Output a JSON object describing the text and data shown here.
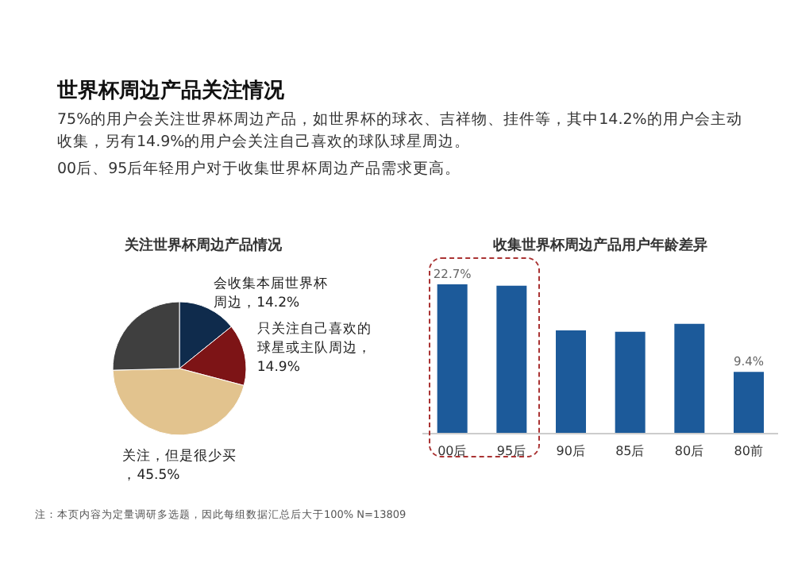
{
  "chart_data": [
    {
      "type": "other",
      "title": "世界杯周边产品关注情况",
      "subtitle": "75%的用户会关注世界杯周边产品，如世界杯的球衣、吉祥物、挂件等，其中14.2%的用户会主动收集，另有14.9%的用户会关注自己喜欢的球队球星周边。\n00后、95后年轻用户对于收集世界杯周边产品需求更高。"
    },
    {
      "type": "pie",
      "title": "关注世界杯周边产品情况",
      "categories": [
        "会收集本届世界杯周边，14.2%",
        "只关注自己喜欢的球星或主队周边，14.9%",
        "关注，但是很少买，45.5%",
        null
      ],
      "values": [
        14.2,
        14.9,
        45.5,
        25.4
      ],
      "colors": [
        "#0f2b4c",
        "#7d1416",
        "#e2c38e",
        "#3f3f3f"
      ],
      "annotations": [
        "注：本页内容为定量调研多选题，因此每组数据汇总后大于100% N=13809"
      ]
    },
    {
      "type": "bar",
      "title": "收集世界杯周边产品用户年龄差异",
      "categories": [
        "00后",
        "95后",
        "90后",
        "85后",
        "80后",
        "80前"
      ],
      "values": [
        22.7,
        22.5,
        15.7,
        15.5,
        16.7,
        9.4
      ],
      "value_labels": [
        "22.7%",
        null,
        null,
        null,
        null,
        "9.4%"
      ],
      "color": "#1c5a9a"
    }
  ]
}
